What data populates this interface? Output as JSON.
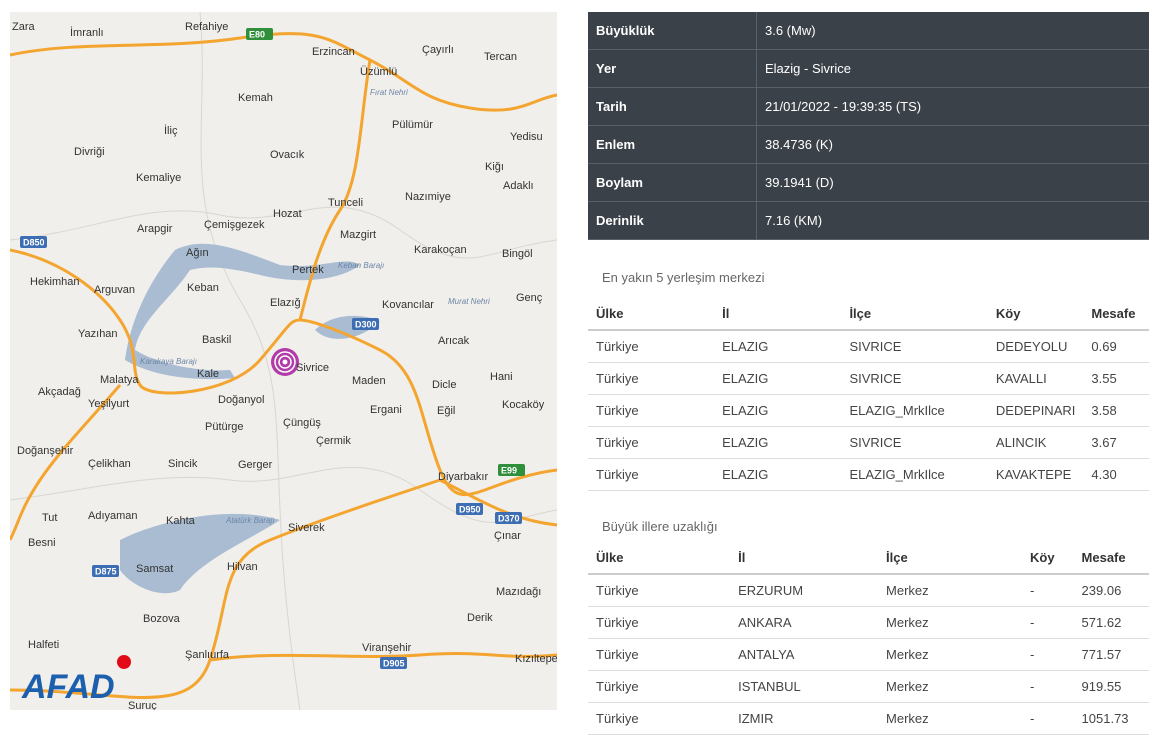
{
  "map": {
    "labels": [
      "Zara",
      "İmranlı",
      "Refahiye",
      "Erzincan",
      "Çayırlı",
      "Tercan",
      "Üzümlü",
      "Fırat Nehri",
      "Kemah",
      "Pülümür",
      "İliç",
      "Yedisu",
      "Divriği",
      "Ovacık",
      "Kiğı",
      "Kemaliye",
      "Adaklı",
      "Nazımiye",
      "Tunceli",
      "Hozat",
      "Çemişgezek",
      "Arapgir",
      "Mazgirt",
      "Karakoçan",
      "Bingöl",
      "Ağın",
      "Pertek",
      "Keban Barajı",
      "Hekimhan",
      "Arguvan",
      "Keban",
      "Genç",
      "Elazığ",
      "Kovancılar",
      "Murat Nehri",
      "Yazıhan",
      "Baskil",
      "Arıcak",
      "Karakaya Barajı",
      "Sivrice",
      "Malatya",
      "Kale",
      "Maden",
      "Hani",
      "Akçadağ",
      "Dicle",
      "Yeşilyurt",
      "Doğanyol",
      "Ergani",
      "Eğil",
      "Kocaköy",
      "Pütürge",
      "Çüngüş",
      "Çermik",
      "Doğanşehir",
      "Çelikhan",
      "Sincik",
      "Gerger",
      "Diyarbakır",
      "Tut",
      "Adıyaman",
      "Kahta",
      "Atatürk Barajı",
      "Siverek",
      "Besni",
      "Çınar",
      "Samsat",
      "Hilvan",
      "Mazıdağı",
      "Bozova",
      "Derik",
      "Halfeti",
      "Şanlıurfa",
      "Viranşehir",
      "Kızıltepe",
      "Suruç"
    ],
    "shields": [
      "E80",
      "D850",
      "D300",
      "E99",
      "D950",
      "D370",
      "D875",
      "D905"
    ],
    "logo": "AFAD"
  },
  "details": {
    "rows": [
      [
        "Büyüklük",
        "3.6 (Mw)"
      ],
      [
        "Yer",
        "Elazig - Sivrice"
      ],
      [
        "Tarih",
        "21/01/2022 - 19:39:35 (TS)"
      ],
      [
        "Enlem",
        "38.4736 (K)"
      ],
      [
        "Boylam",
        "39.1941 (D)"
      ],
      [
        "Derinlik",
        "7.16 (KM)"
      ]
    ]
  },
  "nearest": {
    "title": "En yakın 5 yerleşim merkezi",
    "header": [
      "Ülke",
      "İl",
      "İlçe",
      "Köy",
      "Mesafe"
    ],
    "rows": [
      [
        "Türkiye",
        "ELAZIG",
        "SIVRICE",
        "DEDEYOLU",
        "0.69"
      ],
      [
        "Türkiye",
        "ELAZIG",
        "SIVRICE",
        "KAVALLI",
        "3.55"
      ],
      [
        "Türkiye",
        "ELAZIG",
        "ELAZIG_MrkIlce",
        "DEDEPINARI",
        "3.58"
      ],
      [
        "Türkiye",
        "ELAZIG",
        "SIVRICE",
        "ALINCIK",
        "3.67"
      ],
      [
        "Türkiye",
        "ELAZIG",
        "ELAZIG_MrkIlce",
        "KAVAKTEPE",
        "4.30"
      ]
    ]
  },
  "cities": {
    "title": "Büyük illere uzaklığı",
    "header": [
      "Ülke",
      "İl",
      "İlçe",
      "Köy",
      "Mesafe"
    ],
    "rows": [
      [
        "Türkiye",
        "ERZURUM",
        "Merkez",
        "-",
        "239.06"
      ],
      [
        "Türkiye",
        "ANKARA",
        "Merkez",
        "-",
        "571.62"
      ],
      [
        "Türkiye",
        "ANTALYA",
        "Merkez",
        "-",
        "771.57"
      ],
      [
        "Türkiye",
        "ISTANBUL",
        "Merkez",
        "-",
        "919.55"
      ],
      [
        "Türkiye",
        "IZMIR",
        "Merkez",
        "-",
        "1051.73"
      ]
    ]
  }
}
